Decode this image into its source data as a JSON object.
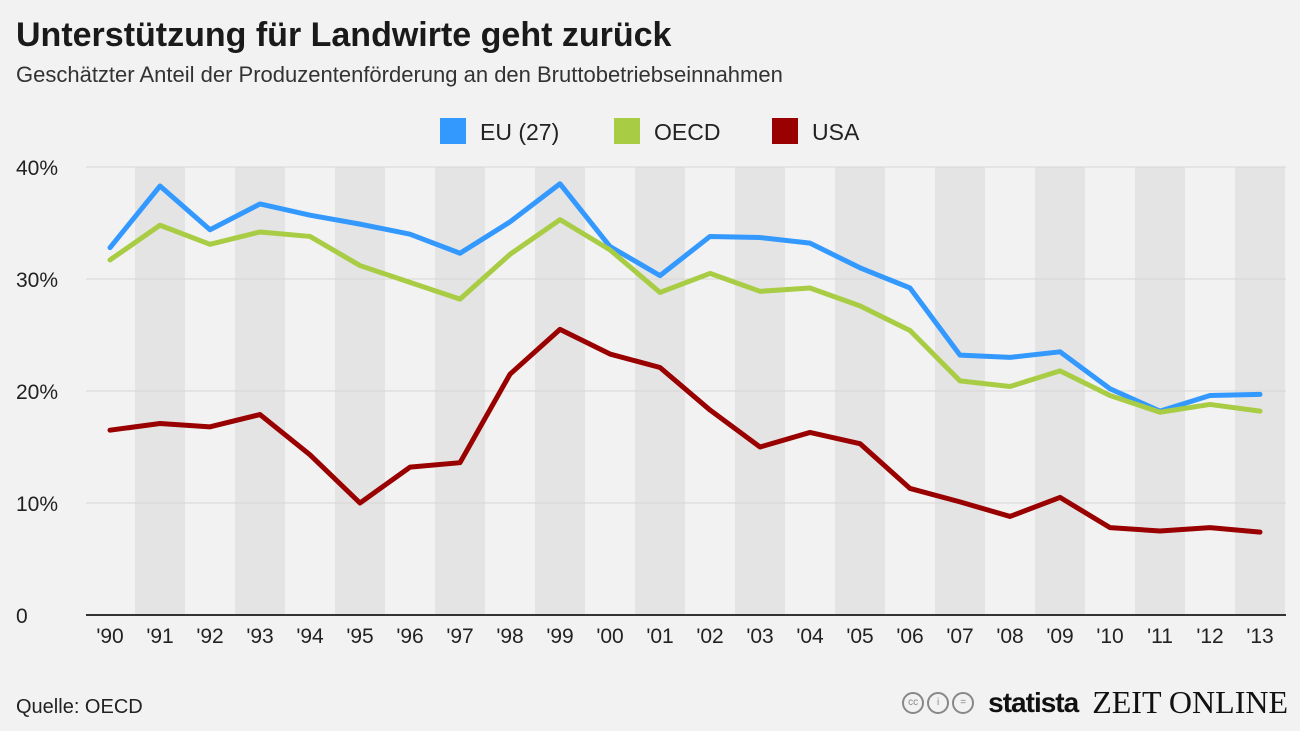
{
  "chart_data": {
    "type": "line",
    "title": "Unterstützung für Landwirte geht zurück",
    "subtitle": "Geschätzter Anteil der Produzentenförderung an den Bruttobetriebseinnahmen",
    "categories": [
      "'90",
      "'91",
      "'92",
      "'93",
      "'94",
      "'95",
      "'96",
      "'97",
      "'98",
      "'99",
      "'00",
      "'01",
      "'02",
      "'03",
      "'04",
      "'05",
      "'06",
      "'07",
      "'08",
      "'09",
      "'10",
      "'11",
      "'12",
      "'13"
    ],
    "series": [
      {
        "name": "EU (27)",
        "color": "#3399ff",
        "values": [
          32.8,
          38.3,
          34.4,
          36.7,
          35.7,
          34.9,
          34.0,
          32.3,
          35.1,
          38.5,
          32.9,
          30.3,
          33.8,
          33.7,
          33.2,
          31.0,
          29.2,
          23.2,
          23.0,
          23.5,
          20.2,
          18.2,
          19.6,
          19.7
        ]
      },
      {
        "name": "OECD",
        "color": "#a9cc45",
        "values": [
          31.7,
          34.8,
          33.1,
          34.2,
          33.8,
          31.2,
          29.7,
          28.2,
          32.2,
          35.3,
          32.6,
          28.8,
          30.5,
          28.9,
          29.2,
          27.6,
          25.4,
          20.9,
          20.4,
          21.8,
          19.6,
          18.1,
          18.8,
          18.2
        ]
      },
      {
        "name": "USA",
        "color": "#990000",
        "values": [
          16.5,
          17.1,
          16.8,
          17.9,
          14.3,
          10.0,
          13.2,
          13.6,
          21.5,
          25.5,
          23.3,
          22.1,
          18.3,
          15.0,
          16.3,
          15.3,
          11.3,
          10.1,
          8.8,
          10.5,
          7.8,
          7.5,
          7.8,
          7.4
        ]
      }
    ],
    "yticks": [
      "0",
      "10%",
      "20%",
      "30%",
      "40%"
    ],
    "ylim": [
      0,
      40
    ],
    "xlabel": "",
    "ylabel": "",
    "legend": "top-center",
    "grid": true
  },
  "footer": {
    "source": "Quelle: OECD",
    "statista": "statista",
    "zeit": "ZEIT ONLINE",
    "cc": [
      "cc",
      "i",
      "="
    ]
  }
}
